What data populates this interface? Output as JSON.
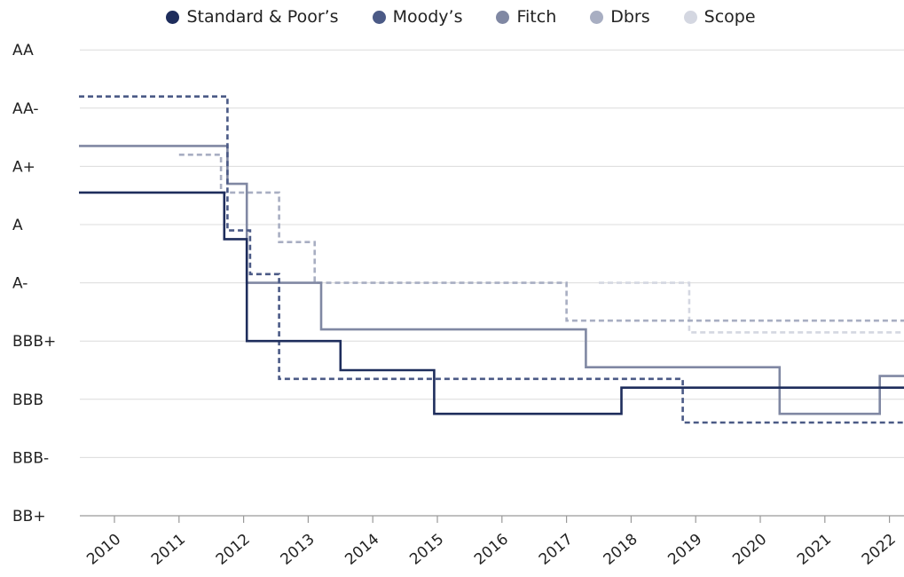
{
  "chart_data": {
    "type": "line",
    "step": true,
    "title": "",
    "xlabel": "",
    "ylabel": "",
    "y_categories": [
      "BB+",
      "BBB-",
      "BBB",
      "BBB+",
      "A-",
      "A",
      "A+",
      "AA-",
      "AA"
    ],
    "x_ticks": [
      "2010",
      "2011",
      "2012",
      "2013",
      "2014",
      "2015",
      "2016",
      "2017",
      "2018",
      "2019",
      "2020",
      "2021",
      "2022"
    ],
    "xlim": [
      2009.45,
      2022.25
    ],
    "legend_position": "top-center",
    "series": [
      {
        "name": "Standard & Poor’s",
        "color": "#1e2d5c",
        "style": "solid",
        "points": [
          [
            2009.45,
            5.55
          ],
          [
            2011.7,
            5.55
          ],
          [
            2011.7,
            4.75
          ],
          [
            2012.05,
            4.75
          ],
          [
            2012.05,
            3.0
          ],
          [
            2013.5,
            3.0
          ],
          [
            2013.5,
            2.5
          ],
          [
            2014.95,
            2.5
          ],
          [
            2014.95,
            1.75
          ],
          [
            2017.85,
            1.75
          ],
          [
            2017.85,
            2.2
          ],
          [
            2022.25,
            2.2
          ]
        ]
      },
      {
        "name": "Moody’s",
        "color": "#4b5a86",
        "style": "dashed",
        "points": [
          [
            2009.45,
            7.2
          ],
          [
            2011.75,
            7.2
          ],
          [
            2011.75,
            4.9
          ],
          [
            2012.1,
            4.9
          ],
          [
            2012.1,
            4.15
          ],
          [
            2012.55,
            4.15
          ],
          [
            2012.55,
            2.35
          ],
          [
            2018.8,
            2.35
          ],
          [
            2018.8,
            1.6
          ],
          [
            2022.25,
            1.6
          ]
        ]
      },
      {
        "name": "Fitch",
        "color": "#8088a3",
        "style": "solid",
        "points": [
          [
            2009.45,
            6.35
          ],
          [
            2011.75,
            6.35
          ],
          [
            2011.75,
            5.7
          ],
          [
            2012.05,
            5.7
          ],
          [
            2012.05,
            4.0
          ],
          [
            2013.2,
            4.0
          ],
          [
            2013.2,
            3.2
          ],
          [
            2017.3,
            3.2
          ],
          [
            2017.3,
            2.55
          ],
          [
            2020.3,
            2.55
          ],
          [
            2020.3,
            1.75
          ],
          [
            2021.85,
            1.75
          ],
          [
            2021.85,
            2.4
          ],
          [
            2022.25,
            2.4
          ]
        ]
      },
      {
        "name": "Dbrs",
        "color": "#a8aec2",
        "style": "dashed",
        "points": [
          [
            2011.0,
            6.2
          ],
          [
            2011.65,
            6.2
          ],
          [
            2011.65,
            5.55
          ],
          [
            2012.55,
            5.55
          ],
          [
            2012.55,
            4.7
          ],
          [
            2013.1,
            4.7
          ],
          [
            2013.1,
            4.0
          ],
          [
            2017.0,
            4.0
          ],
          [
            2017.0,
            3.35
          ],
          [
            2022.25,
            3.35
          ]
        ]
      },
      {
        "name": "Scope",
        "color": "#d4d7e1",
        "style": "dashed",
        "points": [
          [
            2017.5,
            4.0
          ],
          [
            2018.9,
            4.0
          ],
          [
            2018.9,
            3.15
          ],
          [
            2022.25,
            3.15
          ]
        ]
      }
    ]
  }
}
